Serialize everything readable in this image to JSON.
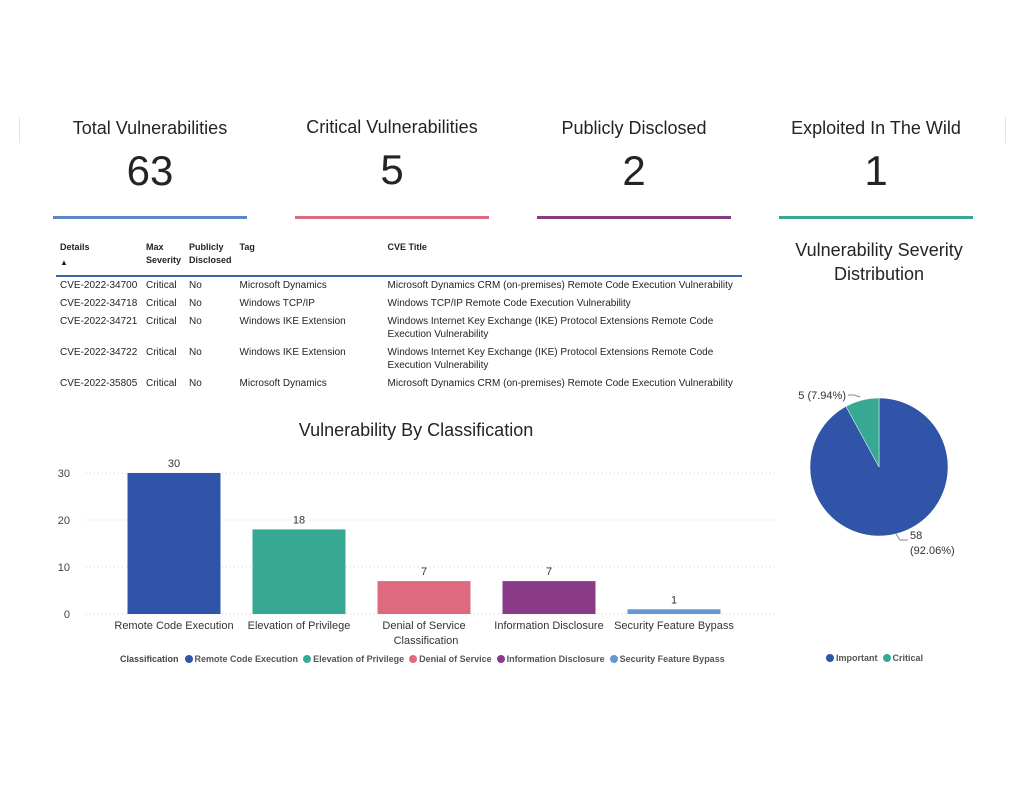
{
  "kpis": [
    {
      "title": "Total Vulnerabilities",
      "value": "63",
      "color": "#5b87c9"
    },
    {
      "title": "Critical Vulnerabilities",
      "value": "5",
      "color": "#dc6b80"
    },
    {
      "title": "Publicly Disclosed",
      "value": "2",
      "color": "#873d83"
    },
    {
      "title": "Exploited In The Wild",
      "value": "1",
      "color": "#3aa894"
    }
  ],
  "table": {
    "headers": {
      "details": "Details",
      "severity": "Max Severity",
      "disclosed": "Publicly Disclosed",
      "tag": "Tag",
      "title": "CVE Title"
    },
    "sort_indicator": "▲",
    "rows": [
      {
        "details": "CVE-2022-34700",
        "severity": "Critical",
        "disclosed": "No",
        "tag": "Microsoft Dynamics",
        "title": "Microsoft Dynamics CRM (on-premises) Remote Code Execution Vulnerability"
      },
      {
        "details": "CVE-2022-34718",
        "severity": "Critical",
        "disclosed": "No",
        "tag": "Windows TCP/IP",
        "title": "Windows TCP/IP Remote Code Execution Vulnerability"
      },
      {
        "details": "CVE-2022-34721",
        "severity": "Critical",
        "disclosed": "No",
        "tag": "Windows IKE Extension",
        "title": "Windows Internet Key Exchange (IKE) Protocol Extensions Remote Code Execution Vulnerability"
      },
      {
        "details": "CVE-2022-34722",
        "severity": "Critical",
        "disclosed": "No",
        "tag": "Windows IKE Extension",
        "title": "Windows Internet Key Exchange (IKE) Protocol Extensions Remote Code Execution Vulnerability"
      },
      {
        "details": "CVE-2022-35805",
        "severity": "Critical",
        "disclosed": "No",
        "tag": "Microsoft Dynamics",
        "title": "Microsoft Dynamics CRM (on-premises) Remote Code Execution Vulnerability"
      }
    ]
  },
  "chart_data": [
    {
      "type": "bar",
      "title": "Vulnerability By Classification",
      "xlabel": "Classification",
      "ylabel": "",
      "categories": [
        "Remote Code Execution",
        "Elevation of Privilege",
        "Denial of Service",
        "Information Disclosure",
        "Security Feature Bypass"
      ],
      "values": [
        30,
        18,
        7,
        7,
        1
      ],
      "colors": [
        "#3054a8",
        "#37a892",
        "#de6a80",
        "#8a3b88",
        "#6a95d3"
      ],
      "yticks": [
        0,
        10,
        20,
        30
      ],
      "ylim": [
        0,
        30
      ],
      "grid": true,
      "legend": {
        "title": "Classification",
        "position": "bottom"
      }
    },
    {
      "type": "pie",
      "title": "Vulnerability Severity Distribution",
      "labels": [
        "Important",
        "Critical"
      ],
      "values": [
        58,
        5
      ],
      "percents": [
        "92.06%",
        "7.94%"
      ],
      "colors": [
        "#3054a8",
        "#37a892"
      ],
      "data_labels": [
        "58 (92.06%)",
        "5 (7.94%)"
      ],
      "legend": {
        "position": "bottom"
      }
    }
  ]
}
